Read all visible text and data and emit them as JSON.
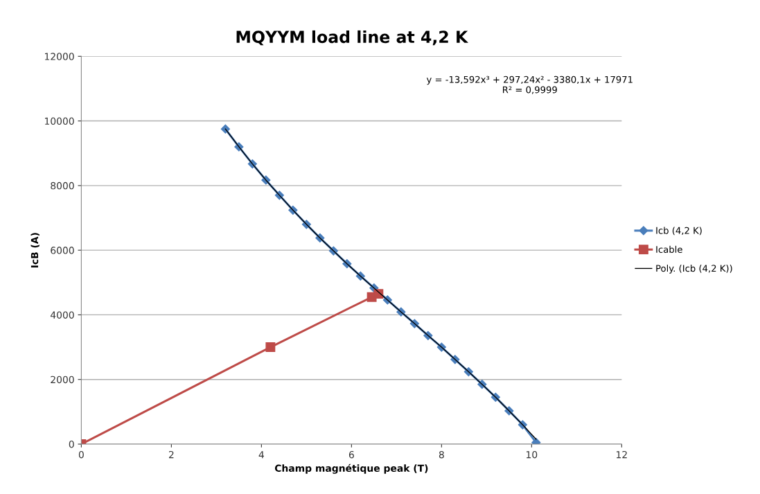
{
  "chart_data": {
    "type": "line",
    "title": "MQYYM load line at 4,2 K",
    "xlabel": "Champ magnétique peak (T)",
    "ylabel": "IcB (A)",
    "xlim": [
      0,
      12
    ],
    "xticks": [
      0,
      2,
      4,
      6,
      8,
      10,
      12
    ],
    "ylim": [
      0,
      12000
    ],
    "yticks": [
      0,
      2000,
      4000,
      6000,
      8000,
      10000,
      12000
    ],
    "grid": "y",
    "legend": "right",
    "annotations": [
      "y = -13,592x³ + 297,24x² - 3380,1x + 17971\nR² = 0,9999"
    ],
    "series": [
      {
        "name": "Icb (4,2 K)",
        "color": "#4a7ebb",
        "marker": "diamond",
        "x": [
          3.2,
          3.5,
          3.8,
          4.1,
          4.4,
          4.7,
          5.0,
          5.3,
          5.6,
          5.9,
          6.2,
          6.5,
          6.8,
          7.1,
          7.4,
          7.7,
          8.0,
          8.3,
          8.6,
          8.9,
          9.2,
          9.5,
          9.8,
          10.1
        ],
        "values": [
          9750,
          9200,
          8670,
          8170,
          7700,
          7240,
          6800,
          6380,
          5980,
          5580,
          5200,
          4830,
          4460,
          4090,
          3730,
          3360,
          3000,
          2620,
          2240,
          1850,
          1450,
          1030,
          600,
          50
        ]
      },
      {
        "name": "Icable",
        "color": "#be4b48",
        "marker": "square",
        "x": [
          0,
          4.2,
          6.45,
          6.6
        ],
        "values": [
          0,
          3000,
          4550,
          4650
        ]
      },
      {
        "name": "Poly. (Icb (4,2 K))",
        "color": "#000000",
        "marker": "none",
        "x": [
          3.2,
          3.5,
          3.8,
          4.1,
          4.4,
          4.7,
          5.0,
          5.3,
          5.6,
          5.9,
          6.2,
          6.5,
          6.8,
          7.1,
          7.4,
          7.7,
          8.0,
          8.3,
          8.6,
          8.9,
          9.2,
          9.5,
          9.8,
          10.1
        ],
        "values": [
          9750,
          9200,
          8670,
          8170,
          7700,
          7240,
          6800,
          6380,
          5980,
          5580,
          5200,
          4830,
          4460,
          4090,
          3730,
          3360,
          3000,
          2620,
          2240,
          1850,
          1450,
          1030,
          600,
          150
        ]
      }
    ]
  }
}
